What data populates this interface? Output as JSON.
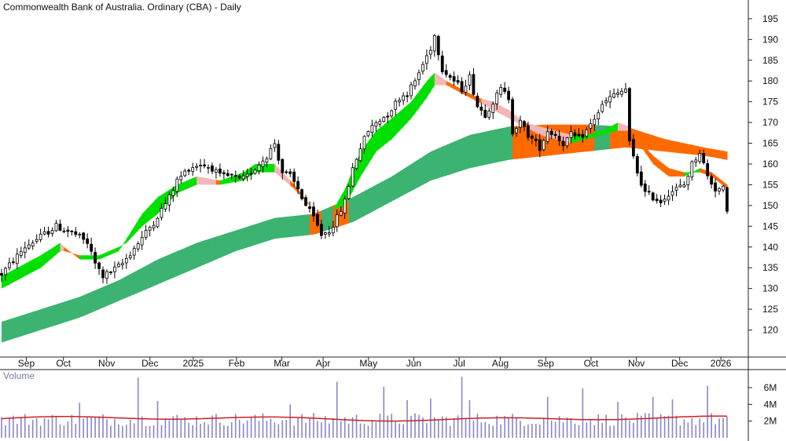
{
  "chart_data": {
    "type": "candlestick",
    "title": "Commonwealth Bank of Australia. Ordinary (CBA) - Daily",
    "price_axis": {
      "ticks": [
        195,
        190,
        185,
        180,
        175,
        170,
        165,
        160,
        155,
        150,
        145,
        140,
        135,
        130,
        125,
        120
      ],
      "range": [
        115,
        198
      ]
    },
    "x_labels": [
      "Sep",
      "Oct",
      "Nov",
      "Dec",
      "2025",
      "Feb",
      "Mar",
      "Apr",
      "May",
      "Jun",
      "Jul",
      "Aug",
      "Sep",
      "Oct",
      "Nov",
      "Dec",
      "2026"
    ],
    "price_path": [
      [
        0,
        133.5
      ],
      [
        6,
        140
      ],
      [
        14,
        145
      ],
      [
        19,
        143
      ],
      [
        22,
        141
      ],
      [
        24,
        136
      ],
      [
        26,
        133
      ],
      [
        28,
        134
      ],
      [
        31,
        136
      ],
      [
        35,
        141
      ],
      [
        39,
        146
      ],
      [
        43,
        152
      ],
      [
        45,
        156
      ],
      [
        48,
        159
      ],
      [
        51,
        160
      ],
      [
        54,
        159
      ],
      [
        56,
        157
      ],
      [
        59,
        157
      ],
      [
        61,
        156
      ],
      [
        63,
        157
      ],
      [
        66,
        160
      ],
      [
        68,
        162
      ],
      [
        70,
        165
      ],
      [
        72,
        158
      ],
      [
        74,
        157
      ],
      [
        76,
        154
      ],
      [
        78,
        150
      ],
      [
        80,
        147
      ],
      [
        82,
        143
      ],
      [
        84,
        144
      ],
      [
        86,
        147
      ],
      [
        88,
        151
      ],
      [
        90,
        159
      ],
      [
        92,
        164
      ],
      [
        94,
        168
      ],
      [
        96,
        170
      ],
      [
        99,
        172
      ],
      [
        102,
        176
      ],
      [
        104,
        177
      ],
      [
        106,
        180
      ],
      [
        108,
        184
      ],
      [
        110,
        188
      ],
      [
        111,
        191
      ],
      [
        113,
        183
      ],
      [
        116,
        180
      ],
      [
        118,
        178
      ],
      [
        120,
        181
      ],
      [
        122,
        174
      ],
      [
        124,
        172
      ],
      [
        126,
        175
      ],
      [
        128,
        178
      ],
      [
        130,
        176
      ],
      [
        131,
        168
      ],
      [
        133,
        170
      ],
      [
        135,
        167
      ],
      [
        138,
        164
      ],
      [
        140,
        168
      ],
      [
        142,
        167
      ],
      [
        144,
        165
      ],
      [
        146,
        167
      ],
      [
        148,
        166
      ],
      [
        150,
        168
      ],
      [
        152,
        171
      ],
      [
        154,
        174
      ],
      [
        156,
        176
      ],
      [
        158,
        177
      ],
      [
        160,
        178
      ],
      [
        161,
        165
      ],
      [
        163,
        158
      ],
      [
        165,
        153
      ],
      [
        167,
        152
      ],
      [
        169,
        151
      ],
      [
        171,
        153
      ],
      [
        173,
        154
      ],
      [
        175,
        155
      ],
      [
        177,
        160
      ],
      [
        179,
        163
      ],
      [
        181,
        157
      ],
      [
        183,
        154
      ],
      [
        185,
        154
      ],
      [
        186,
        148
      ]
    ],
    "series": [
      {
        "name": "short-term MMA band",
        "upper": [
          [
            0,
            133
          ],
          [
            10,
            138
          ],
          [
            15,
            141
          ],
          [
            16,
            140
          ],
          [
            20,
            137
          ],
          [
            25,
            137
          ],
          [
            30,
            139
          ],
          [
            32,
            142
          ],
          [
            36,
            148
          ],
          [
            40,
            152
          ],
          [
            45,
            155
          ],
          [
            50,
            157
          ],
          [
            56,
            156
          ],
          [
            62,
            158
          ],
          [
            65,
            160
          ],
          [
            70,
            160
          ],
          [
            75,
            155
          ],
          [
            80,
            149
          ],
          [
            85,
            149
          ],
          [
            88,
            154
          ],
          [
            92,
            163
          ],
          [
            96,
            168
          ],
          [
            100,
            171
          ],
          [
            105,
            175
          ],
          [
            109,
            180
          ],
          [
            111,
            182
          ],
          [
            114,
            180
          ],
          [
            118,
            178
          ],
          [
            122,
            176
          ],
          [
            126,
            175
          ],
          [
            130,
            173
          ],
          [
            134,
            170
          ],
          [
            138,
            169
          ],
          [
            142,
            168
          ],
          [
            146,
            167
          ],
          [
            150,
            167
          ],
          [
            154,
            168
          ],
          [
            158,
            170
          ],
          [
            161,
            169
          ],
          [
            164,
            164
          ],
          [
            167,
            160
          ],
          [
            171,
            157
          ],
          [
            175,
            157
          ],
          [
            179,
            159
          ],
          [
            182,
            158
          ],
          [
            186,
            155
          ]
        ],
        "lower": [
          [
            0,
            130
          ],
          [
            10,
            135
          ],
          [
            15,
            139
          ],
          [
            16,
            139
          ],
          [
            20,
            138
          ],
          [
            25,
            138
          ],
          [
            30,
            140
          ],
          [
            32,
            141
          ],
          [
            36,
            145
          ],
          [
            40,
            148
          ],
          [
            45,
            153
          ],
          [
            50,
            155
          ],
          [
            56,
            155
          ],
          [
            62,
            156
          ],
          [
            65,
            158
          ],
          [
            70,
            158
          ],
          [
            75,
            154
          ],
          [
            80,
            149
          ],
          [
            85,
            149
          ],
          [
            88,
            150
          ],
          [
            92,
            157
          ],
          [
            96,
            163
          ],
          [
            100,
            166
          ],
          [
            105,
            171
          ],
          [
            109,
            176
          ],
          [
            111,
            179
          ],
          [
            114,
            179
          ],
          [
            118,
            177
          ],
          [
            122,
            175
          ],
          [
            126,
            173
          ],
          [
            130,
            171
          ],
          [
            134,
            169
          ],
          [
            138,
            167
          ],
          [
            142,
            166
          ],
          [
            146,
            165
          ],
          [
            150,
            166
          ],
          [
            154,
            167
          ],
          [
            158,
            168
          ],
          [
            161,
            168
          ],
          [
            164,
            165
          ],
          [
            167,
            162
          ],
          [
            171,
            159
          ],
          [
            175,
            158
          ],
          [
            179,
            158
          ],
          [
            182,
            157
          ],
          [
            186,
            154
          ]
        ]
      },
      {
        "name": "long-term MMA band",
        "upper": [
          [
            0,
            122
          ],
          [
            10,
            125
          ],
          [
            20,
            128
          ],
          [
            30,
            132
          ],
          [
            40,
            137
          ],
          [
            50,
            141
          ],
          [
            60,
            144
          ],
          [
            70,
            147
          ],
          [
            80,
            148
          ],
          [
            90,
            152
          ],
          [
            100,
            157
          ],
          [
            110,
            163
          ],
          [
            120,
            167
          ],
          [
            130,
            169
          ],
          [
            140,
            169.5
          ],
          [
            150,
            169.5
          ],
          [
            160,
            169
          ],
          [
            170,
            166
          ],
          [
            180,
            164
          ],
          [
            186,
            163
          ]
        ],
        "lower": [
          [
            0,
            117
          ],
          [
            10,
            120
          ],
          [
            20,
            123
          ],
          [
            30,
            127
          ],
          [
            40,
            131
          ],
          [
            50,
            135
          ],
          [
            60,
            139
          ],
          [
            70,
            142
          ],
          [
            80,
            143
          ],
          [
            90,
            146
          ],
          [
            100,
            151
          ],
          [
            110,
            156
          ],
          [
            120,
            159
          ],
          [
            130,
            161
          ],
          [
            140,
            162
          ],
          [
            150,
            163
          ],
          [
            160,
            164
          ],
          [
            170,
            163
          ],
          [
            180,
            162
          ],
          [
            186,
            161
          ]
        ]
      }
    ],
    "volume": {
      "title": "Volume",
      "ticks": [
        "6M",
        "4M",
        "2M"
      ],
      "tick_values": [
        6,
        4,
        2
      ],
      "range": [
        0,
        7.5
      ],
      "average_level": 2.3
    },
    "colors": {
      "short_up": "#00e000",
      "short_down": "#ff6a00",
      "short_down_light": "#f5b6b6",
      "long_up": "#3cb371",
      "long_down": "#ff6a00",
      "volume_bar": "#8a86c9",
      "volume_avg": "#cc2020"
    }
  }
}
